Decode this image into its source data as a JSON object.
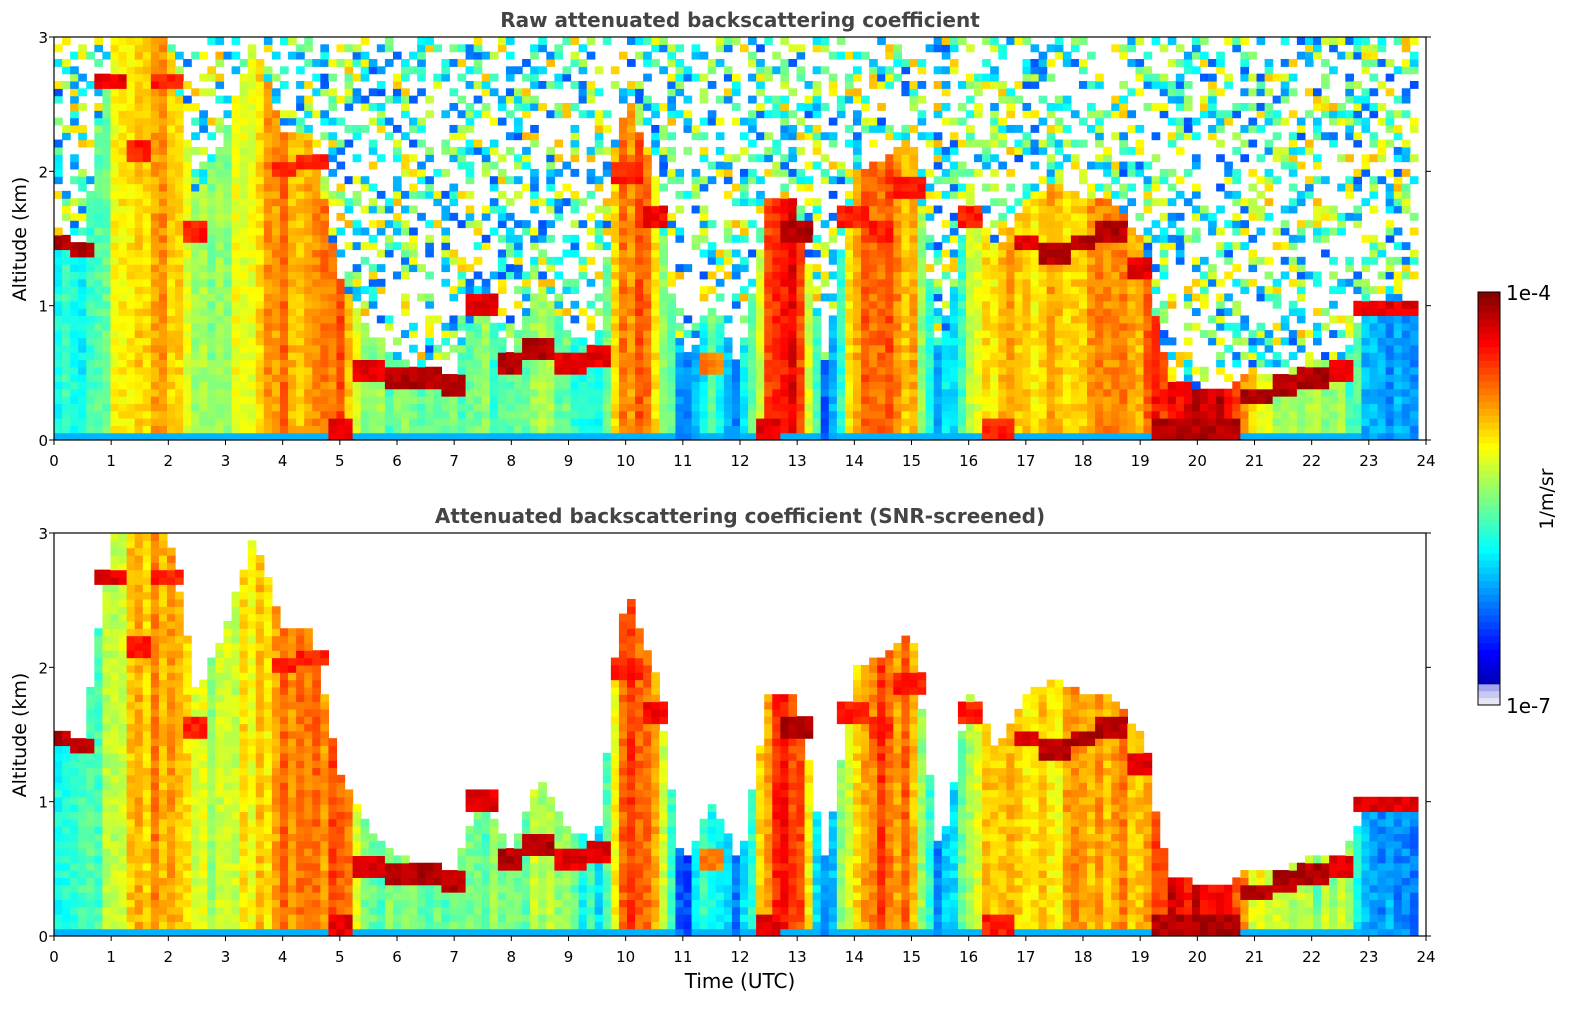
{
  "figure": {
    "colorbar": {
      "label": "1/m/sr",
      "max_label": "1e-4",
      "min_label": "1e-7",
      "vmin": 1e-07,
      "vmax": 0.0001,
      "scale": "log",
      "colormap": "jet",
      "placement": "right",
      "low_end_colors": [
        "#e6e6f5",
        "#c8c8f0",
        "#a5a5ee"
      ]
    }
  },
  "chart_data": [
    {
      "type": "heatmap",
      "title": "Raw attenuated backscattering coefficient",
      "xlabel": "",
      "ylabel": "Altitude (km)",
      "xlim": [
        0,
        24
      ],
      "ylim": [
        0,
        3
      ],
      "xticks": [
        "0",
        "1",
        "2",
        "3",
        "4",
        "5",
        "6",
        "7",
        "8",
        "9",
        "10",
        "11",
        "12",
        "13",
        "14",
        "15",
        "16",
        "17",
        "18",
        "19",
        "20",
        "21",
        "22",
        "23",
        "24"
      ],
      "yticks": [
        "0",
        "1",
        "2",
        "3"
      ],
      "grid": false,
      "data_end_time": 23.8,
      "columns": [
        {
          "t": 0.0,
          "ml_top": 1.55,
          "ml_level": 0.35,
          "cloud_base": 1.4,
          "cloud_level": 0.95
        },
        {
          "t": 0.5,
          "ml_top": 1.45,
          "ml_level": 0.4,
          "cloud_base": 1.35,
          "cloud_level": 0.95
        },
        {
          "t": 1.0,
          "ml_top": 3.0,
          "ml_level": 0.55,
          "cloud_base": 2.6,
          "cloud_level": 0.9
        },
        {
          "t": 1.5,
          "ml_top": 3.0,
          "ml_level": 0.68,
          "cloud_base": 2.1,
          "cloud_level": 0.85
        },
        {
          "t": 2.0,
          "ml_top": 3.0,
          "ml_level": 0.72,
          "cloud_base": 2.6,
          "cloud_level": 0.85
        },
        {
          "t": 2.5,
          "ml_top": 1.8,
          "ml_level": 0.55,
          "cloud_base": 1.5,
          "cloud_level": 0.85
        },
        {
          "t": 3.0,
          "ml_top": 2.3,
          "ml_level": 0.55,
          "cloud_base": null,
          "cloud_level": null
        },
        {
          "t": 3.5,
          "ml_top": 3.0,
          "ml_level": 0.66,
          "cloud_base": null,
          "cloud_level": null
        },
        {
          "t": 4.0,
          "ml_top": 2.3,
          "ml_level": 0.72,
          "cloud_base": 1.95,
          "cloud_level": 0.85
        },
        {
          "t": 4.5,
          "ml_top": 2.3,
          "ml_level": 0.72,
          "cloud_base": 2.0,
          "cloud_level": 0.85
        },
        {
          "t": 5.0,
          "ml_top": 1.2,
          "ml_level": 0.8,
          "cloud_base": 0.0,
          "cloud_level": 0.9
        },
        {
          "t": 5.5,
          "ml_top": 0.8,
          "ml_level": 0.5,
          "cloud_base": 0.45,
          "cloud_level": 0.9
        },
        {
          "t": 6.0,
          "ml_top": 0.6,
          "ml_level": 0.45,
          "cloud_base": 0.4,
          "cloud_level": 0.95
        },
        {
          "t": 6.5,
          "ml_top": 0.55,
          "ml_level": 0.5,
          "cloud_base": 0.4,
          "cloud_level": 0.95
        },
        {
          "t": 7.0,
          "ml_top": 0.5,
          "ml_level": 0.5,
          "cloud_base": 0.35,
          "cloud_level": 0.95
        },
        {
          "t": 7.5,
          "ml_top": 1.05,
          "ml_level": 0.5,
          "cloud_base": 0.95,
          "cloud_level": 0.9
        },
        {
          "t": 8.0,
          "ml_top": 0.6,
          "ml_level": 0.45,
          "cloud_base": 0.5,
          "cloud_level": 0.95
        },
        {
          "t": 8.5,
          "ml_top": 1.2,
          "ml_level": 0.55,
          "cloud_base": 0.6,
          "cloud_level": 0.95
        },
        {
          "t": 9.0,
          "ml_top": 0.8,
          "ml_level": 0.5,
          "cloud_base": 0.5,
          "cloud_level": 0.9
        },
        {
          "t": 9.5,
          "ml_top": 0.7,
          "ml_level": 0.35,
          "cloud_base": 0.55,
          "cloud_level": 0.9
        },
        {
          "t": 10.0,
          "ml_top": 2.6,
          "ml_level": 0.78,
          "cloud_base": 1.9,
          "cloud_level": 0.85
        },
        {
          "t": 10.5,
          "ml_top": 2.0,
          "ml_level": 0.72,
          "cloud_base": 1.6,
          "cloud_level": 0.88
        },
        {
          "t": 11.0,
          "ml_top": 0.5,
          "ml_level": 0.2,
          "cloud_base": null,
          "cloud_level": null
        },
        {
          "t": 11.5,
          "ml_top": 1.0,
          "ml_level": 0.45,
          "cloud_base": 0.5,
          "cloud_level": 0.75
        },
        {
          "t": 12.0,
          "ml_top": 0.55,
          "ml_level": 0.25,
          "cloud_base": null,
          "cloud_level": null
        },
        {
          "t": 12.5,
          "ml_top": 1.8,
          "ml_level": 0.78,
          "cloud_base": 0.0,
          "cloud_level": 0.9
        },
        {
          "t": 13.0,
          "ml_top": 1.8,
          "ml_level": 0.85,
          "cloud_base": 1.5,
          "cloud_level": 0.95
        },
        {
          "t": 13.5,
          "ml_top": 0.55,
          "ml_level": 0.2,
          "cloud_base": null,
          "cloud_level": null
        },
        {
          "t": 14.0,
          "ml_top": 2.0,
          "ml_level": 0.7,
          "cloud_base": 1.6,
          "cloud_level": 0.85
        },
        {
          "t": 14.5,
          "ml_top": 2.1,
          "ml_level": 0.78,
          "cloud_base": 1.5,
          "cloud_level": 0.85
        },
        {
          "t": 15.0,
          "ml_top": 2.3,
          "ml_level": 0.72,
          "cloud_base": 1.8,
          "cloud_level": 0.85
        },
        {
          "t": 15.5,
          "ml_top": 0.55,
          "ml_level": 0.25,
          "cloud_base": null,
          "cloud_level": null
        },
        {
          "t": 16.0,
          "ml_top": 1.8,
          "ml_level": 0.55,
          "cloud_base": 1.6,
          "cloud_level": 0.85
        },
        {
          "t": 16.5,
          "ml_top": 1.4,
          "ml_level": 0.7,
          "cloud_base": 0.0,
          "cloud_level": 0.85
        },
        {
          "t": 17.0,
          "ml_top": 1.8,
          "ml_level": 0.68,
          "cloud_base": 1.4,
          "cloud_level": 0.9
        },
        {
          "t": 17.5,
          "ml_top": 1.9,
          "ml_level": 0.68,
          "cloud_base": 1.3,
          "cloud_level": 0.95
        },
        {
          "t": 18.0,
          "ml_top": 1.8,
          "ml_level": 0.68,
          "cloud_base": 1.4,
          "cloud_level": 0.95
        },
        {
          "t": 18.5,
          "ml_top": 1.8,
          "ml_level": 0.7,
          "cloud_base": 1.5,
          "cloud_level": 0.95
        },
        {
          "t": 19.0,
          "ml_top": 1.5,
          "ml_level": 0.7,
          "cloud_base": 1.2,
          "cloud_level": 0.9
        },
        {
          "t": 19.5,
          "ml_top": 0.45,
          "ml_level": 0.9,
          "cloud_base": 0.0,
          "cloud_level": 0.95
        },
        {
          "t": 20.0,
          "ml_top": 0.4,
          "ml_level": 0.92,
          "cloud_base": 0.0,
          "cloud_level": 0.95
        },
        {
          "t": 20.5,
          "ml_top": 0.4,
          "ml_level": 0.92,
          "cloud_base": 0.0,
          "cloud_level": 0.95
        },
        {
          "t": 21.0,
          "ml_top": 0.5,
          "ml_level": 0.6,
          "cloud_base": 0.25,
          "cloud_level": 0.95
        },
        {
          "t": 21.5,
          "ml_top": 0.5,
          "ml_level": 0.55,
          "cloud_base": 0.35,
          "cloud_level": 0.95
        },
        {
          "t": 22.0,
          "ml_top": 0.6,
          "ml_level": 0.5,
          "cloud_base": 0.4,
          "cloud_level": 0.95
        },
        {
          "t": 22.5,
          "ml_top": 0.6,
          "ml_level": 0.55,
          "cloud_base": 0.45,
          "cloud_level": 0.9
        },
        {
          "t": 23.0,
          "ml_top": 1.0,
          "ml_level": 0.3,
          "cloud_base": 0.9,
          "cloud_level": 0.9
        },
        {
          "t": 23.5,
          "ml_top": 1.0,
          "ml_level": 0.3,
          "cloud_base": 0.9,
          "cloud_level": 0.9
        }
      ]
    },
    {
      "type": "heatmap",
      "title": "Attenuated backscattering coefficient (SNR-screened)",
      "xlabel": "Time (UTC)",
      "ylabel": "Altitude (km)",
      "xlim": [
        0,
        24
      ],
      "ylim": [
        0,
        3
      ],
      "xticks": [
        "0",
        "1",
        "2",
        "3",
        "4",
        "5",
        "6",
        "7",
        "8",
        "9",
        "10",
        "11",
        "12",
        "13",
        "14",
        "15",
        "16",
        "17",
        "18",
        "19",
        "20",
        "21",
        "22",
        "23",
        "24"
      ],
      "yticks": [
        "0",
        "1",
        "2",
        "3"
      ],
      "grid": false,
      "data_end_time": 23.8,
      "screening": "same field as above with low-SNR pixels removed (white above the boundary layer and clouds)"
    }
  ]
}
